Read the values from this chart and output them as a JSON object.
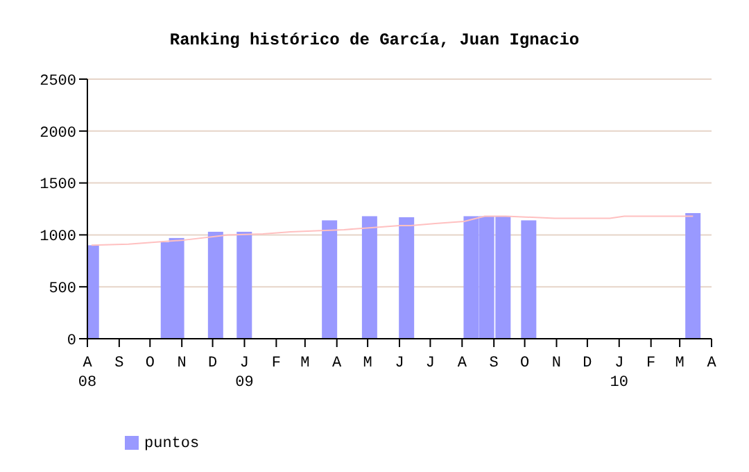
{
  "chart_data": {
    "type": "bar",
    "title": "Ranking histórico de García, Juan Ignacio",
    "series": [
      {
        "name": "puntos",
        "color": "#9999ff",
        "x": [
          "2008-08-05",
          "2008-10-19",
          "2008-10-27",
          "2008-12-04",
          "2009-01-01",
          "2009-03-25",
          "2009-05-03",
          "2009-06-08",
          "2009-08-10",
          "2009-08-25",
          "2009-09-10",
          "2009-10-05",
          "2010-03-14"
        ],
        "values": [
          900,
          930,
          970,
          1030,
          1030,
          1140,
          1180,
          1170,
          1180,
          1180,
          1180,
          1140,
          1210
        ]
      },
      {
        "type": "line",
        "color": "#ffc0c0",
        "x": [
          "2008-08-05",
          "2008-09-10",
          "2008-11-03",
          "2008-12-16",
          "2009-01-19",
          "2009-02-15",
          "2009-03-12",
          "2009-04-08",
          "2009-05-05",
          "2009-06-01",
          "2009-06-12",
          "2009-07-06",
          "2009-08-03",
          "2009-08-23",
          "2009-09-13",
          "2009-10-30",
          "2009-12-23",
          "2010-01-06",
          "2010-03-14"
        ],
        "values": [
          900,
          910,
          950,
          1000,
          1010,
          1030,
          1040,
          1050,
          1070,
          1090,
          1090,
          1110,
          1130,
          1180,
          1180,
          1160,
          1160,
          1180,
          1180
        ]
      }
    ],
    "xlim": [
      "2008-08",
      "2010-04"
    ],
    "xticks": [
      {
        "value": "2008-08",
        "label": "A\n08"
      },
      {
        "value": "2008-09",
        "label": "S"
      },
      {
        "value": "2008-10",
        "label": "O"
      },
      {
        "value": "2008-11",
        "label": "N"
      },
      {
        "value": "2008-12",
        "label": "D"
      },
      {
        "value": "2009-01",
        "label": "J\n09"
      },
      {
        "value": "2009-02",
        "label": "F"
      },
      {
        "value": "2009-03",
        "label": "M"
      },
      {
        "value": "2009-04",
        "label": "A"
      },
      {
        "value": "2009-05",
        "label": "M"
      },
      {
        "value": "2009-06",
        "label": "J"
      },
      {
        "value": "2009-07",
        "label": "J"
      },
      {
        "value": "2009-08",
        "label": "A"
      },
      {
        "value": "2009-09",
        "label": "S"
      },
      {
        "value": "2009-10",
        "label": "O"
      },
      {
        "value": "2009-11",
        "label": "N"
      },
      {
        "value": "2009-12",
        "label": "D"
      },
      {
        "value": "2010-01",
        "label": "J\n10"
      },
      {
        "value": "2010-02",
        "label": "F"
      },
      {
        "value": "2010-03",
        "label": "M"
      },
      {
        "value": "2010-04",
        "label": "A"
      }
    ],
    "ylim": [
      0,
      2500
    ],
    "yticks": [
      0,
      500,
      1000,
      1500,
      2000,
      2500
    ],
    "grid": "y",
    "legend": "bottom left"
  }
}
